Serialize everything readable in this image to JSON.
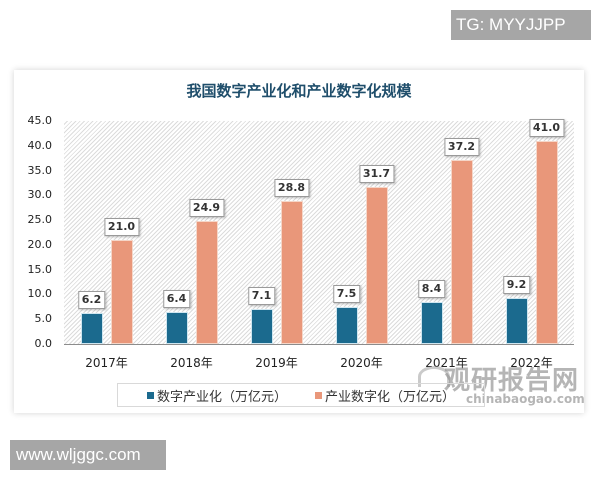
{
  "watermarks": {
    "top_right": "TG: MYYJJPP",
    "bottom_left": "www.wljggc.com"
  },
  "brand": {
    "name_cn": "观研报告网",
    "domain": "chinabaogao.com"
  },
  "colors": {
    "series0": "#1b6a8e",
    "series1": "#e9977a",
    "title": "#1f4e6b"
  },
  "chart_data": {
    "type": "bar",
    "title": "我国数字产业化和产业数字化规模",
    "xlabel": "",
    "ylabel": "",
    "ylim": [
      0,
      45
    ],
    "yticks": [
      "0.0",
      "5.0",
      "10.0",
      "15.0",
      "20.0",
      "25.0",
      "30.0",
      "35.0",
      "40.0",
      "45.0"
    ],
    "categories": [
      "2017年",
      "2018年",
      "2019年",
      "2020年",
      "2021年",
      "2022年"
    ],
    "series": [
      {
        "name": "数字产业化（万亿元）",
        "values": [
          6.2,
          6.4,
          7.1,
          7.5,
          8.4,
          9.2
        ],
        "labels": [
          "6.2",
          "6.4",
          "7.1",
          "7.5",
          "8.4",
          "9.2"
        ]
      },
      {
        "name": "产业数字化（万亿元）",
        "values": [
          21.0,
          24.9,
          28.8,
          31.7,
          37.2,
          41.0
        ],
        "labels": [
          "21.0",
          "24.9",
          "28.8",
          "31.7",
          "37.2",
          "41.0"
        ]
      }
    ],
    "legend_position": "bottom",
    "grid": false
  }
}
